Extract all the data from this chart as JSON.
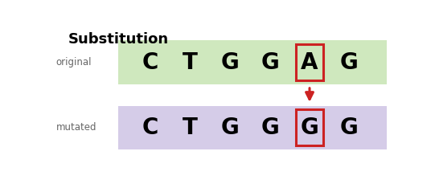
{
  "title": "Substitution",
  "title_fontsize": 13,
  "title_fontweight": "bold",
  "background_color": "#ffffff",
  "border_color": "#9aaabb",
  "original_label": "original",
  "mutated_label": "mutated",
  "label_fontsize": 8.5,
  "label_color": "#666666",
  "original_seq": [
    "C",
    "T",
    "G",
    "G",
    "A",
    "G"
  ],
  "mutated_seq": [
    "C",
    "T",
    "G",
    "G",
    "G",
    "G"
  ],
  "highlight_index": 4,
  "original_bg": "#cfe8be",
  "mutated_bg": "#d5cce8",
  "seq_fontsize": 20,
  "seq_fontweight": "bold",
  "box_color": "#cc2222",
  "arrow_color": "#cc2222",
  "fig_width": 5.41,
  "fig_height": 2.29,
  "dpi": 100
}
